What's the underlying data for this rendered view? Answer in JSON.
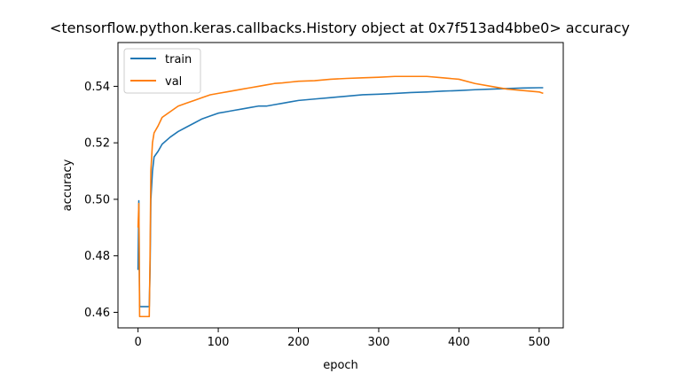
{
  "chart_data": {
    "type": "line",
    "title": "<tensorflow.python.keras.callbacks.History object at 0x7f513ad4bbe0> accuracy",
    "xlabel": "epoch",
    "ylabel": "accuracy",
    "xlim": [
      -25,
      530
    ],
    "ylim": [
      0.4545,
      0.5555
    ],
    "xticks": [
      0,
      100,
      200,
      300,
      400,
      500
    ],
    "yticks": [
      0.46,
      0.48,
      0.5,
      0.52,
      0.54
    ],
    "ytick_labels": [
      "0.46",
      "0.48",
      "0.50",
      "0.52",
      "0.54"
    ],
    "legend_position": "upper-left",
    "grid": false,
    "n_epochs": 506,
    "series": [
      {
        "name": "train",
        "color": "#1f77b4",
        "x": [
          0,
          1,
          2,
          3,
          5,
          8,
          10,
          12,
          14,
          15,
          16,
          18,
          20,
          25,
          30,
          40,
          50,
          60,
          70,
          80,
          90,
          100,
          110,
          120,
          130,
          140,
          150,
          160,
          170,
          180,
          190,
          200,
          220,
          240,
          260,
          280,
          300,
          320,
          340,
          360,
          380,
          400,
          420,
          440,
          460,
          480,
          500,
          505
        ],
        "y": [
          0.475,
          0.4995,
          0.462,
          0.462,
          0.462,
          0.462,
          0.462,
          0.462,
          0.462,
          0.475,
          0.5,
          0.51,
          0.515,
          0.517,
          0.5195,
          0.522,
          0.524,
          0.5255,
          0.527,
          0.5285,
          0.5295,
          0.5305,
          0.531,
          0.5315,
          0.532,
          0.5325,
          0.533,
          0.533,
          0.5335,
          0.534,
          0.5345,
          0.535,
          0.5355,
          0.536,
          0.5365,
          0.537,
          0.5372,
          0.5375,
          0.5378,
          0.538,
          0.5383,
          0.5385,
          0.5388,
          0.539,
          0.5392,
          0.5394,
          0.5395,
          0.5395
        ]
      },
      {
        "name": "val",
        "color": "#ff7f0e",
        "x": [
          0,
          1,
          2,
          3,
          5,
          8,
          10,
          12,
          14,
          15,
          16,
          18,
          20,
          25,
          30,
          40,
          50,
          60,
          70,
          80,
          90,
          100,
          110,
          120,
          130,
          140,
          150,
          160,
          170,
          180,
          190,
          200,
          220,
          240,
          260,
          280,
          300,
          320,
          340,
          360,
          380,
          400,
          420,
          440,
          460,
          480,
          500,
          505
        ],
        "y": [
          0.49,
          0.4985,
          0.4585,
          0.4585,
          0.4585,
          0.4585,
          0.4585,
          0.4585,
          0.4585,
          0.48,
          0.51,
          0.52,
          0.5235,
          0.526,
          0.529,
          0.531,
          0.533,
          0.534,
          0.535,
          0.536,
          0.537,
          0.5375,
          0.538,
          0.5385,
          0.539,
          0.5395,
          0.54,
          0.5405,
          0.541,
          0.5412,
          0.5415,
          0.5418,
          0.542,
          0.5425,
          0.5428,
          0.543,
          0.5432,
          0.5435,
          0.5435,
          0.5435,
          0.543,
          0.5425,
          0.541,
          0.54,
          0.539,
          0.5385,
          0.538,
          0.5375
        ]
      }
    ]
  }
}
